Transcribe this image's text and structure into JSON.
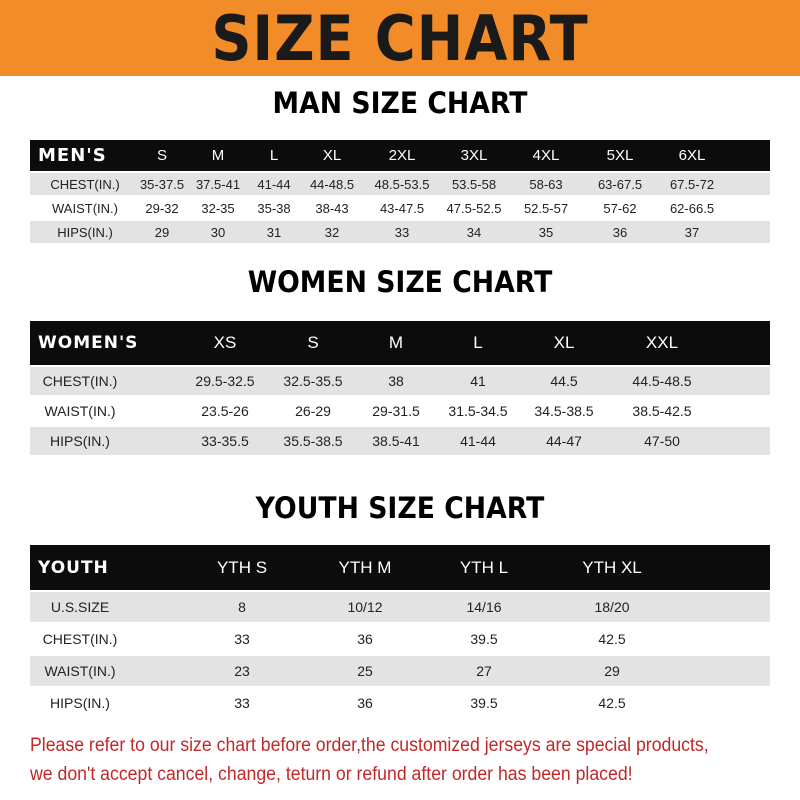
{
  "banner": {
    "title": "SIZE CHART",
    "color": "#f28c28"
  },
  "men": {
    "title": "MAN SIZE CHART",
    "header": [
      "MEN'S",
      "S",
      "M",
      "L",
      "XL",
      "2XL",
      "3XL",
      "4XL",
      "5XL",
      "6XL"
    ],
    "rows": [
      [
        "CHEST(IN.)",
        "35-37.5",
        "37.5-41",
        "41-44",
        "44-48.5",
        "48.5-53.5",
        "53.5-58",
        "58-63",
        "63-67.5",
        "67.5-72"
      ],
      [
        "WAIST(IN.)",
        "29-32",
        "32-35",
        "35-38",
        "38-43",
        "43-47.5",
        "47.5-52.5",
        "52.5-57",
        "57-62",
        "62-66.5"
      ],
      [
        "HIPS(IN.)",
        "29",
        "30",
        "31",
        "32",
        "33",
        "34",
        "35",
        "36",
        "37"
      ]
    ]
  },
  "women": {
    "title": "WOMEN SIZE CHART",
    "header": [
      "WOMEN'S",
      "XS",
      "S",
      "M",
      "L",
      "XL",
      "XXL"
    ],
    "rows": [
      [
        "CHEST(IN.)",
        "29.5-32.5",
        "32.5-35.5",
        "38",
        "41",
        "44.5",
        "44.5-48.5"
      ],
      [
        "WAIST(IN.)",
        "23.5-26",
        "26-29",
        "29-31.5",
        "31.5-34.5",
        "34.5-38.5",
        "38.5-42.5"
      ],
      [
        "HIPS(IN.)",
        "33-35.5",
        "35.5-38.5",
        "38.5-41",
        "41-44",
        "44-47",
        "47-50"
      ]
    ]
  },
  "youth": {
    "title": "YOUTH SIZE CHART",
    "header": [
      "YOUTH",
      "YTH S",
      "YTH M",
      "YTH L",
      "YTH XL"
    ],
    "rows": [
      [
        "U.S.SIZE",
        "8",
        "10/12",
        "14/16",
        "18/20"
      ],
      [
        "CHEST(IN.)",
        "33",
        "36",
        "39.5",
        "42.5"
      ],
      [
        "WAIST(IN.)",
        "23",
        "25",
        "27",
        "29"
      ],
      [
        "HIPS(IN.)",
        "33",
        "36",
        "39.5",
        "42.5"
      ]
    ]
  },
  "footer": {
    "line1": "Please refer to our size chart before order,the customized jerseys are special products,",
    "line2": "we don't accept cancel, change, teturn or refund after order has been placed!",
    "color": "#c0282a"
  }
}
